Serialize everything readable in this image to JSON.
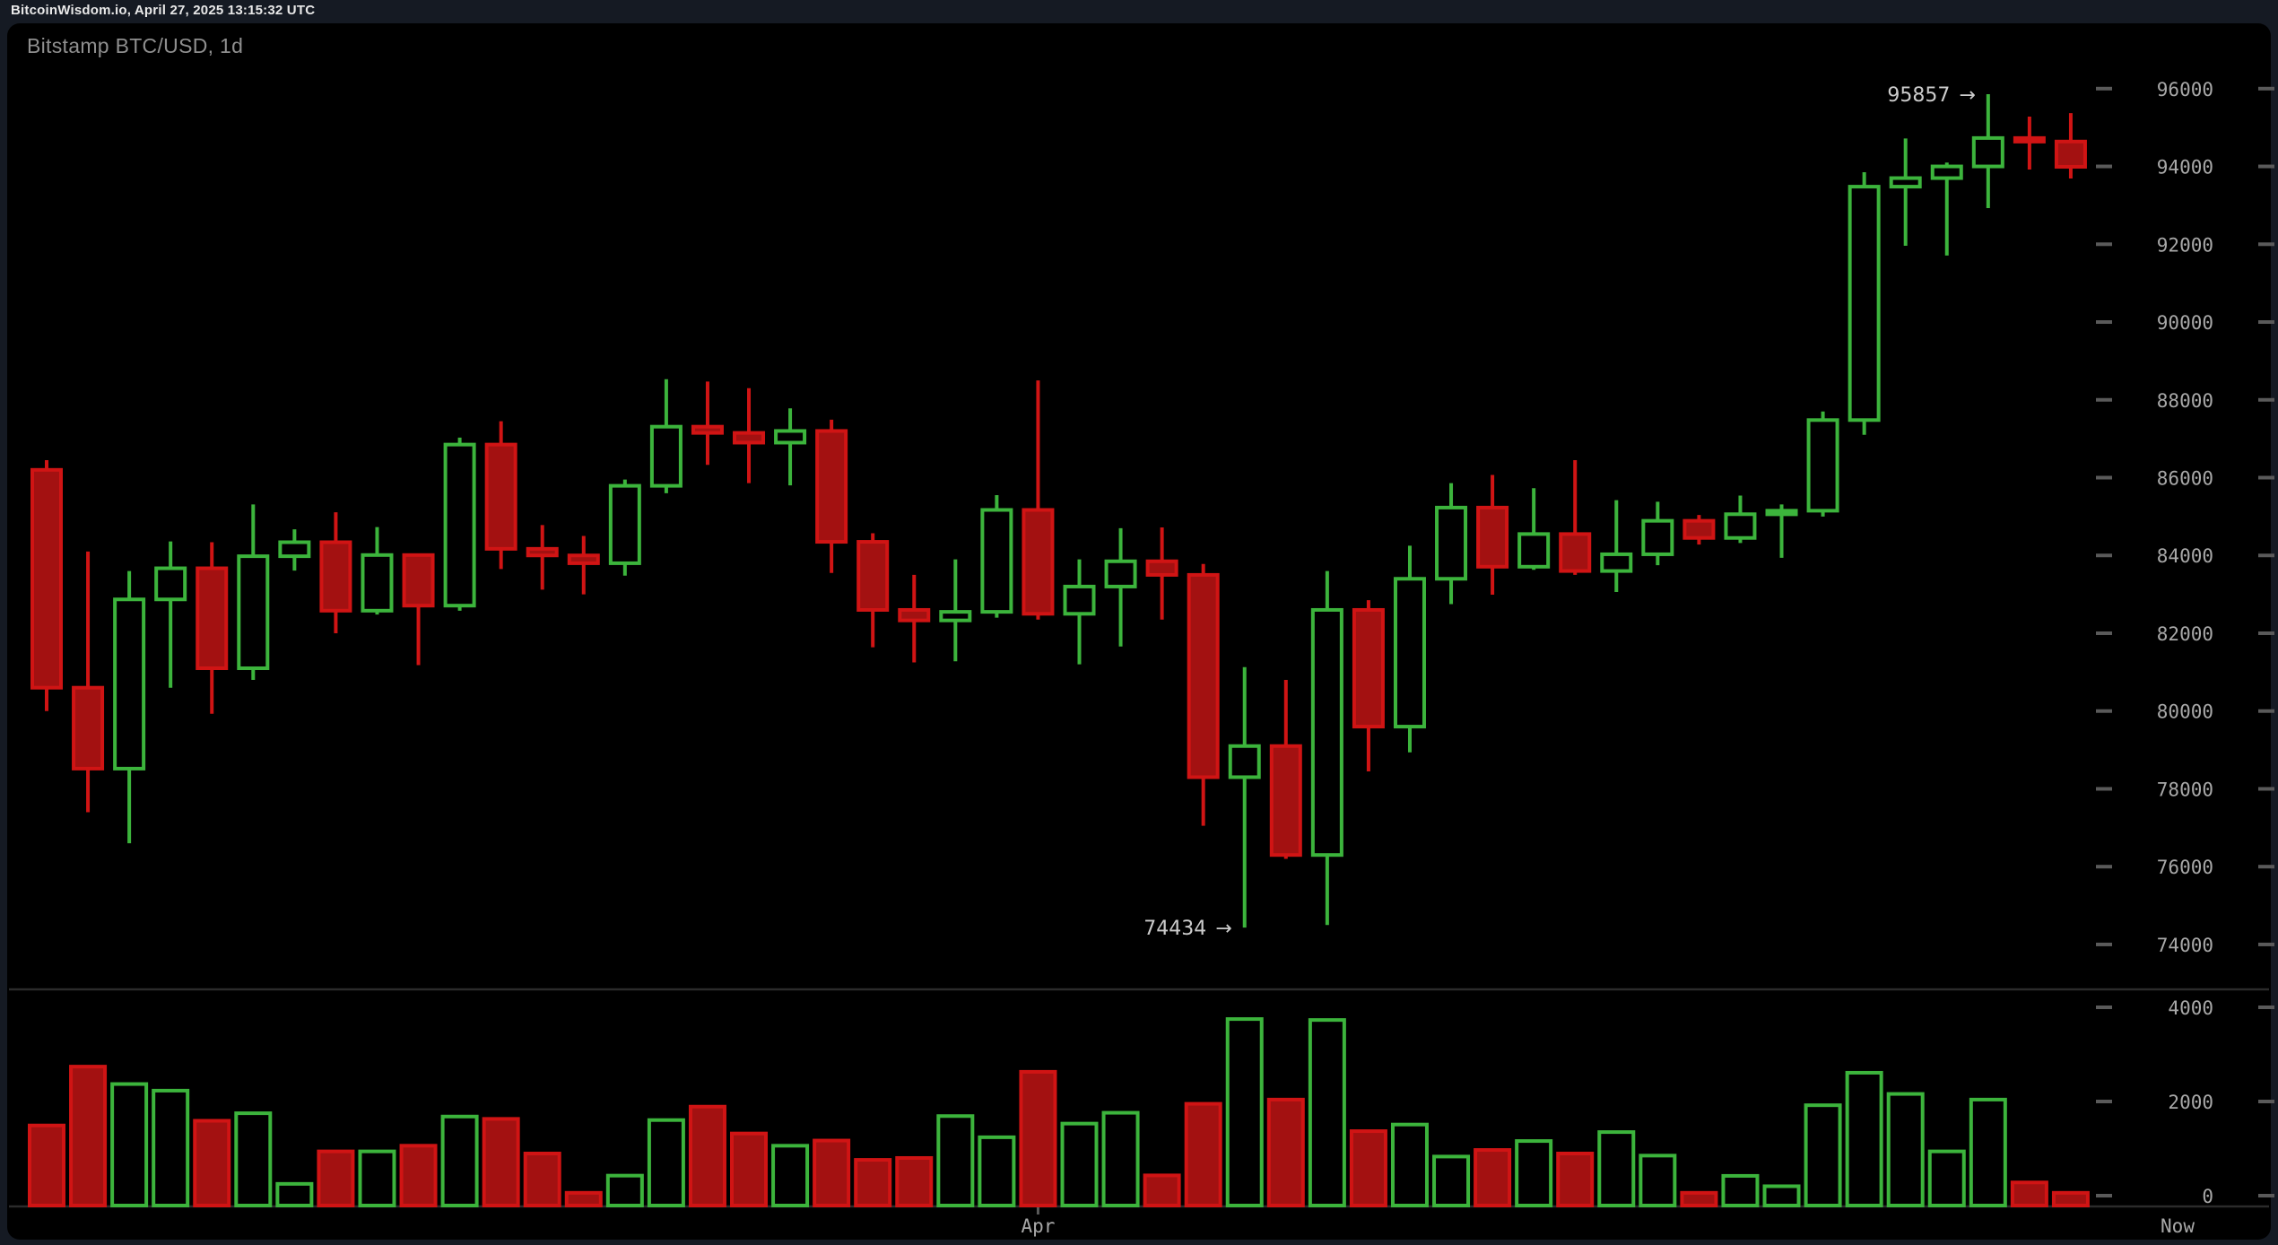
{
  "header": {
    "status_text": "BitcoinWisdom.io, April 27, 2025 13:15:32 UTC"
  },
  "chart": {
    "title": "Bitstamp BTC/USD, 1d"
  },
  "colors": {
    "page_bg": "#151a23",
    "panel_bg": "#000000",
    "up": "#3cb43c",
    "down_border": "#d01414",
    "down_fill": "#a31111",
    "axis_text": "#a8a8a8",
    "tick_dash": "#5a5a5a",
    "divider": "#2b2b2b",
    "annotation_text": "#cccccc",
    "title_text": "#8f8f8f",
    "header_text": "#e9e9e9"
  },
  "chart_data": {
    "type": "candlestick_with_volume",
    "title": "Bitstamp BTC/USD, 1d",
    "price_axis": {
      "ticks": [
        96000,
        94000,
        92000,
        90000,
        88000,
        86000,
        84000,
        82000,
        80000,
        78000,
        76000,
        74000
      ],
      "range": [
        73050,
        96900
      ]
    },
    "volume_axis": {
      "ticks": [
        4000,
        2000,
        0
      ],
      "range": [
        0,
        4600
      ]
    },
    "x_axis_labels": [
      {
        "text": "Apr",
        "candle_index": 25,
        "has_tick": true
      },
      {
        "text": "Now",
        "position": "right",
        "has_tick": false
      }
    ],
    "annotations": [
      {
        "text": "95857",
        "arrow": "→",
        "candle_index": 48,
        "price": 95857
      },
      {
        "text": "74434",
        "arrow": "→",
        "candle_index": 30,
        "price": 74434
      }
    ],
    "candles_format": [
      "open",
      "high",
      "low",
      "close",
      "volume"
    ],
    "candles": [
      [
        86200,
        86450,
        80000,
        80600,
        1700
      ],
      [
        80600,
        84100,
        77400,
        78520,
        2950
      ],
      [
        78520,
        83600,
        76600,
        82870,
        2580
      ],
      [
        82870,
        84360,
        80600,
        83670,
        2440
      ],
      [
        83670,
        84340,
        79930,
        81100,
        1800
      ],
      [
        81100,
        85310,
        80800,
        83980,
        1960
      ],
      [
        83980,
        84670,
        83610,
        84340,
        460
      ],
      [
        84340,
        85110,
        82000,
        82580,
        1150
      ],
      [
        82580,
        84730,
        82480,
        84010,
        1150
      ],
      [
        84010,
        84010,
        81180,
        82710,
        1270
      ],
      [
        82710,
        87030,
        82580,
        86850,
        1890
      ],
      [
        86850,
        87450,
        83650,
        84170,
        1840
      ],
      [
        84170,
        84780,
        83120,
        84000,
        1105
      ],
      [
        84000,
        84500,
        83000,
        83800,
        270
      ],
      [
        83800,
        85950,
        83480,
        85790,
        635
      ],
      [
        85790,
        88530,
        85600,
        87310,
        1815
      ],
      [
        87310,
        88470,
        86330,
        87150,
        2100
      ],
      [
        87150,
        88300,
        85860,
        86900,
        1530
      ],
      [
        86900,
        87780,
        85800,
        87200,
        1270
      ],
      [
        87200,
        87490,
        83550,
        84350,
        1380
      ],
      [
        84350,
        84570,
        81640,
        82600,
        970
      ],
      [
        82600,
        83500,
        81250,
        82330,
        1010
      ],
      [
        82330,
        83900,
        81280,
        82550,
        1900
      ],
      [
        82550,
        85550,
        82400,
        85170,
        1450
      ],
      [
        85170,
        88500,
        82350,
        82500,
        2840
      ],
      [
        82500,
        83900,
        81200,
        83200,
        1740
      ],
      [
        83200,
        84700,
        81660,
        83850,
        1970
      ],
      [
        83850,
        84720,
        82350,
        83500,
        640
      ],
      [
        83500,
        83780,
        77050,
        78300,
        2160
      ],
      [
        78300,
        81130,
        74434,
        79100,
        3960
      ],
      [
        79100,
        80800,
        76200,
        76300,
        2250
      ],
      [
        76300,
        83600,
        74500,
        82600,
        3940
      ],
      [
        82600,
        82850,
        78450,
        79600,
        1580
      ],
      [
        79600,
        84250,
        78940,
        83400,
        1720
      ],
      [
        83400,
        85860,
        82750,
        85230,
        1040
      ],
      [
        85230,
        86070,
        82990,
        83710,
        1180
      ],
      [
        83710,
        85730,
        83630,
        84550,
        1370
      ],
      [
        84550,
        86450,
        83500,
        83600,
        1105
      ],
      [
        83600,
        85420,
        83060,
        84030,
        1560
      ],
      [
        84030,
        85380,
        83750,
        84890,
        1060
      ],
      [
        84890,
        85040,
        84280,
        84450,
        270
      ],
      [
        84450,
        85540,
        84320,
        85060,
        630
      ],
      [
        85060,
        85310,
        83940,
        85150,
        410
      ],
      [
        85150,
        87700,
        85000,
        87480,
        2130
      ],
      [
        87480,
        93850,
        87100,
        93480,
        2820
      ],
      [
        93480,
        94720,
        91960,
        93700,
        2370
      ],
      [
        93700,
        94100,
        91710,
        94000,
        1150
      ],
      [
        94000,
        95857,
        92930,
        94730,
        2250
      ],
      [
        94730,
        95280,
        93920,
        94640,
        490
      ],
      [
        94640,
        95370,
        93690,
        93990,
        270
      ]
    ]
  }
}
